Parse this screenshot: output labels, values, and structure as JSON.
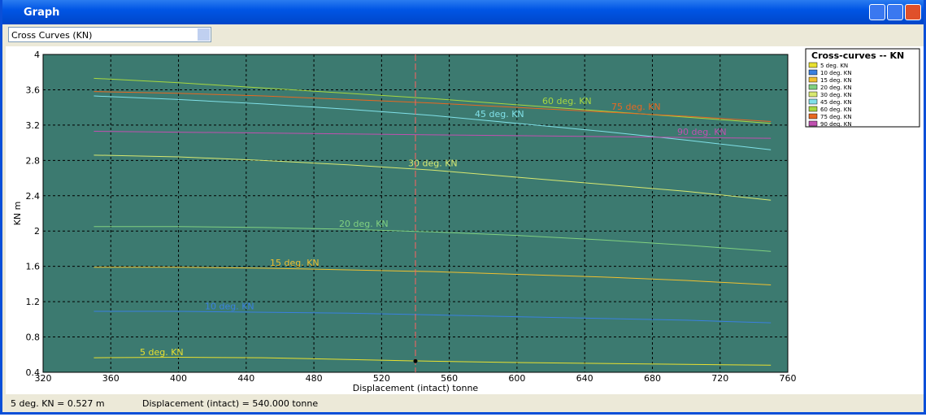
{
  "window": {
    "title": "Graph"
  },
  "selector": {
    "value": "Cross Curves (KN)"
  },
  "status": {
    "left": "5 deg.  KN =  0.527 m",
    "right": "Displacement (intact) =  540.000 tonne"
  },
  "chart_data": {
    "type": "line",
    "xlabel": "Displacement (intact)  tonne",
    "ylabel": "KN  m",
    "legend_title": "Cross-curves -- KN",
    "legend": "upper right",
    "x": [
      350,
      400,
      450,
      500,
      550,
      600,
      650,
      700,
      750
    ],
    "series": [
      {
        "name": "5 deg. KN",
        "color": "#e8e030",
        "values": [
          0.565,
          0.57,
          0.565,
          0.545,
          0.525,
          0.51,
          0.5,
          0.49,
          0.48
        ]
      },
      {
        "name": "10 deg. KN",
        "color": "#3a80e0",
        "values": [
          1.09,
          1.09,
          1.08,
          1.07,
          1.05,
          1.03,
          1.01,
          0.99,
          0.96
        ]
      },
      {
        "name": "15 deg. KN",
        "color": "#f0c030",
        "values": [
          1.59,
          1.59,
          1.58,
          1.56,
          1.54,
          1.51,
          1.48,
          1.44,
          1.39
        ]
      },
      {
        "name": "20 deg. KN",
        "color": "#80d080",
        "values": [
          2.05,
          2.05,
          2.04,
          2.02,
          1.99,
          1.95,
          1.9,
          1.84,
          1.77
        ]
      },
      {
        "name": "30 deg. KN",
        "color": "#d8e870",
        "values": [
          2.86,
          2.84,
          2.8,
          2.75,
          2.69,
          2.61,
          2.53,
          2.45,
          2.35
        ]
      },
      {
        "name": "45 deg. KN",
        "color": "#80e0e8",
        "values": [
          3.53,
          3.49,
          3.44,
          3.38,
          3.31,
          3.22,
          3.13,
          3.03,
          2.92
        ]
      },
      {
        "name": "60 deg. KN",
        "color": "#a8d840",
        "values": [
          3.73,
          3.68,
          3.62,
          3.56,
          3.5,
          3.43,
          3.36,
          3.29,
          3.22
        ]
      },
      {
        "name": "75 deg. KN",
        "color": "#e86820",
        "values": [
          3.58,
          3.56,
          3.53,
          3.49,
          3.45,
          3.4,
          3.35,
          3.3,
          3.24
        ]
      },
      {
        "name": "90 deg. KN",
        "color": "#c050b0",
        "values": [
          3.13,
          3.12,
          3.11,
          3.1,
          3.09,
          3.08,
          3.07,
          3.06,
          3.05
        ]
      }
    ],
    "cursor": {
      "x": 540,
      "y": 0.527,
      "color": "#ff6060"
    },
    "xlim": [
      320,
      760
    ],
    "xticks": [
      320,
      360,
      400,
      440,
      480,
      520,
      560,
      600,
      640,
      680,
      720,
      760
    ],
    "ylim": [
      0.4,
      4
    ],
    "yticks": [
      0.4,
      0.8,
      1.2,
      1.6,
      2,
      2.4,
      2.8,
      3.2,
      3.6,
      4
    ],
    "grid": true,
    "background": "#3c7a70"
  }
}
